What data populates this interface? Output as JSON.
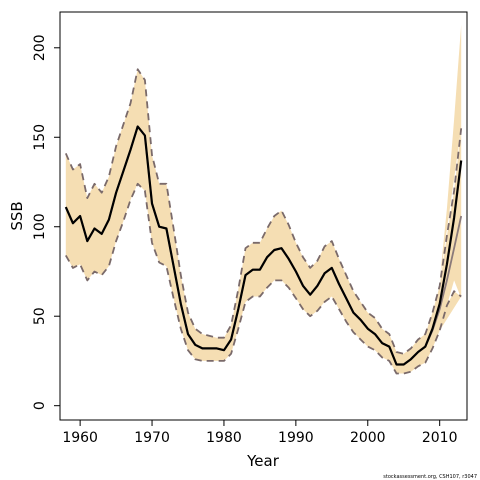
{
  "chart_data": {
    "type": "line",
    "title": "",
    "xlabel": "Year",
    "ylabel": "SSB",
    "xlim": [
      1957.2,
      2013.8
    ],
    "ylim": [
      -8,
      220
    ],
    "xticks": [
      1960,
      1970,
      1980,
      1990,
      2000,
      2010
    ],
    "yticks": [
      0,
      50,
      100,
      150,
      200
    ],
    "grid": false,
    "colors": {
      "band_fill": "#f5deb3",
      "bound_line": "#7a6a6a",
      "estimate_line": "#000000",
      "alt_estimate_line": "#8a7a7a"
    },
    "x": [
      1958,
      1959,
      1960,
      1961,
      1962,
      1963,
      1964,
      1965,
      1966,
      1967,
      1968,
      1969,
      1970,
      1971,
      1972,
      1973,
      1974,
      1975,
      1976,
      1977,
      1978,
      1979,
      1980,
      1981,
      1982,
      1983,
      1984,
      1985,
      1986,
      1987,
      1988,
      1989,
      1990,
      1991,
      1992,
      1993,
      1994,
      1995,
      1996,
      1997,
      1998,
      1999,
      2000,
      2001,
      2002,
      2003,
      2004,
      2005,
      2006,
      2007,
      2008,
      2009,
      2010,
      2011,
      2012,
      2013
    ],
    "series": [
      {
        "role": "estimate",
        "values": [
          111,
          102,
          106,
          92,
          99,
          96,
          104,
          119,
          131,
          143,
          156,
          151,
          113,
          100,
          99,
          78,
          57,
          40,
          34,
          32,
          32,
          32,
          31,
          37,
          54,
          73,
          76,
          76,
          83,
          87,
          88,
          82,
          75,
          67,
          62,
          67,
          74,
          77,
          68,
          60,
          52,
          48,
          43,
          40,
          35,
          33,
          23,
          23,
          26,
          30,
          33,
          43,
          57,
          79,
          105,
          137
        ]
      },
      {
        "role": "upper-bound",
        "values": [
          141,
          132,
          135,
          116,
          124,
          119,
          128,
          145,
          157,
          169,
          188,
          182,
          140,
          124,
          124,
          99,
          73,
          52,
          43,
          40,
          39,
          38,
          38,
          45,
          65,
          88,
          91,
          91,
          99,
          106,
          109,
          101,
          91,
          83,
          77,
          81,
          89,
          92,
          82,
          73,
          64,
          58,
          52,
          49,
          43,
          40,
          30,
          29,
          32,
          37,
          40,
          52,
          67,
          95,
          120,
          155
        ]
      },
      {
        "role": "lower-bound",
        "values": [
          84,
          77,
          79,
          70,
          75,
          73,
          78,
          92,
          103,
          115,
          124,
          120,
          91,
          80,
          78,
          60,
          43,
          31,
          26,
          25,
          25,
          25,
          25,
          29,
          43,
          58,
          61,
          61,
          66,
          70,
          70,
          66,
          60,
          54,
          50,
          53,
          58,
          61,
          54,
          47,
          41,
          37,
          33,
          31,
          27,
          25,
          18,
          18,
          19,
          22,
          24,
          32,
          42,
          56,
          64,
          61
        ]
      },
      {
        "role": "alternate-estimate",
        "values": [
          111,
          102,
          106,
          92,
          99,
          96,
          104,
          119,
          131,
          143,
          156,
          151,
          113,
          100,
          99,
          78,
          57,
          40,
          34,
          32,
          32,
          32,
          31,
          37,
          54,
          73,
          76,
          76,
          83,
          87,
          88,
          82,
          75,
          67,
          62,
          67,
          74,
          77,
          68,
          60,
          52,
          48,
          43,
          40,
          35,
          33,
          23,
          23,
          26,
          30,
          33,
          42,
          54,
          70,
          88,
          106
        ]
      }
    ],
    "band_upper_extra": [
      {
        "x": 2010,
        "y": 70
      },
      {
        "x": 2011,
        "y": 110
      },
      {
        "x": 2012,
        "y": 160
      },
      {
        "x": 2013,
        "y": 213
      }
    ],
    "band_lower_extra": [
      {
        "x": 2013,
        "y": 60
      },
      {
        "x": 2012,
        "y": 70
      },
      {
        "x": 2011,
        "y": 56
      },
      {
        "x": 2010,
        "y": 42
      }
    ],
    "credit": "stockassessment.org, CSH107, r3047"
  }
}
